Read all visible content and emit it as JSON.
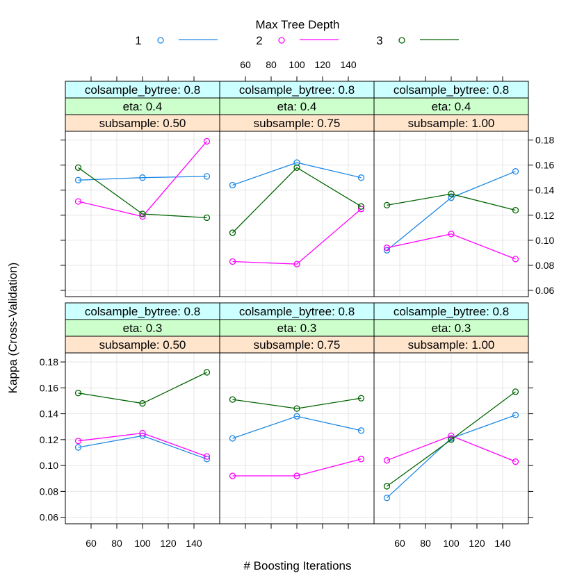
{
  "chart_data": {
    "type": "line",
    "legend": {
      "title": "Max Tree Depth",
      "placement": "top",
      "entries": [
        {
          "label": "1",
          "color": "#1e88e5"
        },
        {
          "label": "2",
          "color": "#ff00ff"
        },
        {
          "label": "3",
          "color": "#006400"
        }
      ]
    },
    "xlabel": "# Boosting Iterations",
    "ylabel": "Kappa (Cross-Validation)",
    "xlim": [
      40,
      160
    ],
    "ylim": [
      0.055,
      0.187
    ],
    "x_ticks": [
      60,
      80,
      100,
      120,
      140
    ],
    "y_ticks": [
      0.06,
      0.08,
      0.1,
      0.12,
      0.14,
      0.16,
      0.18
    ],
    "y_tick_labels": [
      "0.06",
      "0.08",
      "0.10",
      "0.12",
      "0.14",
      "0.16",
      "0.18"
    ],
    "grid": true,
    "x": [
      50,
      100,
      150
    ],
    "panels": [
      {
        "strips": [
          "colsample_bytree: 0.8",
          "eta: 0.4",
          "subsample: 0.50"
        ],
        "series": [
          {
            "name": "1",
            "values": [
              0.148,
              0.15,
              0.151
            ]
          },
          {
            "name": "2",
            "values": [
              0.131,
              0.119,
              0.179
            ]
          },
          {
            "name": "3",
            "values": [
              0.158,
              0.121,
              0.118
            ]
          }
        ]
      },
      {
        "strips": [
          "colsample_bytree: 0.8",
          "eta: 0.4",
          "subsample: 0.75"
        ],
        "series": [
          {
            "name": "1",
            "values": [
              0.144,
              0.162,
              0.15
            ]
          },
          {
            "name": "2",
            "values": [
              0.083,
              0.081,
              0.125
            ]
          },
          {
            "name": "3",
            "values": [
              0.106,
              0.158,
              0.127
            ]
          }
        ]
      },
      {
        "strips": [
          "colsample_bytree: 0.8",
          "eta: 0.4",
          "subsample: 1.00"
        ],
        "series": [
          {
            "name": "1",
            "values": [
              0.092,
              0.134,
              0.155
            ]
          },
          {
            "name": "2",
            "values": [
              0.094,
              0.105,
              0.085
            ]
          },
          {
            "name": "3",
            "values": [
              0.128,
              0.137,
              0.124
            ]
          }
        ]
      },
      {
        "strips": [
          "colsample_bytree: 0.8",
          "eta: 0.3",
          "subsample: 0.50"
        ],
        "series": [
          {
            "name": "1",
            "values": [
              0.114,
              0.123,
              0.105
            ]
          },
          {
            "name": "2",
            "values": [
              0.119,
              0.125,
              0.107
            ]
          },
          {
            "name": "3",
            "values": [
              0.156,
              0.148,
              0.172
            ]
          }
        ]
      },
      {
        "strips": [
          "colsample_bytree: 0.8",
          "eta: 0.3",
          "subsample: 0.75"
        ],
        "series": [
          {
            "name": "1",
            "values": [
              0.121,
              0.138,
              0.127
            ]
          },
          {
            "name": "2",
            "values": [
              0.092,
              0.092,
              0.105
            ]
          },
          {
            "name": "3",
            "values": [
              0.151,
              0.144,
              0.152
            ]
          }
        ]
      },
      {
        "strips": [
          "colsample_bytree: 0.8",
          "eta: 0.3",
          "subsample: 1.00"
        ],
        "series": [
          {
            "name": "1",
            "values": [
              0.075,
              0.121,
              0.139
            ]
          },
          {
            "name": "2",
            "values": [
              0.104,
              0.123,
              0.103
            ]
          },
          {
            "name": "3",
            "values": [
              0.084,
              0.12,
              0.157
            ]
          }
        ]
      }
    ],
    "strip_colors": [
      "#ccffff",
      "#ccffcc",
      "#ffe5cc"
    ]
  }
}
